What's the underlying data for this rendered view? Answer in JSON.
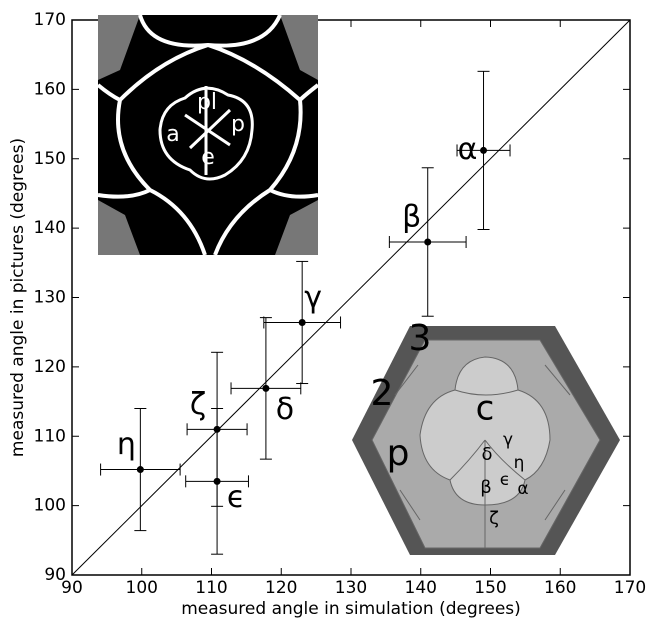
{
  "chart_data": {
    "type": "scatter",
    "xlabel": "measured angle in simulation (degrees)",
    "ylabel": "measured angle in pictures (degrees)",
    "xlim": [
      90,
      170
    ],
    "ylim": [
      90,
      170
    ],
    "xticks": [
      90,
      100,
      110,
      120,
      130,
      140,
      150,
      160,
      170
    ],
    "yticks": [
      90,
      100,
      110,
      120,
      130,
      140,
      150,
      160,
      170
    ],
    "diagonal": true,
    "color": "#000000",
    "labels": [
      "α",
      "β",
      "γ",
      "δ",
      "ζ",
      "ϵ",
      "η"
    ],
    "x": [
      149,
      141,
      123,
      117.8,
      110.8,
      110.8,
      99.8
    ],
    "values": [
      151.2,
      138,
      126.4,
      116.9,
      111,
      103.5,
      105.2
    ],
    "xerr": [
      3.8,
      5.5,
      5.5,
      5,
      4.3,
      4.5,
      5.7
    ],
    "yerr": [
      11.4,
      10.7,
      8.8,
      10.2,
      11.1,
      10.5,
      8.8
    ]
  },
  "insets": [
    {
      "labels": [
        "pl",
        "a",
        "p",
        "e"
      ]
    },
    {
      "labels": [
        "3",
        "2",
        "p",
        "c",
        "δ",
        "γ",
        "η",
        "β",
        "ϵ",
        "α",
        "ζ"
      ]
    }
  ]
}
